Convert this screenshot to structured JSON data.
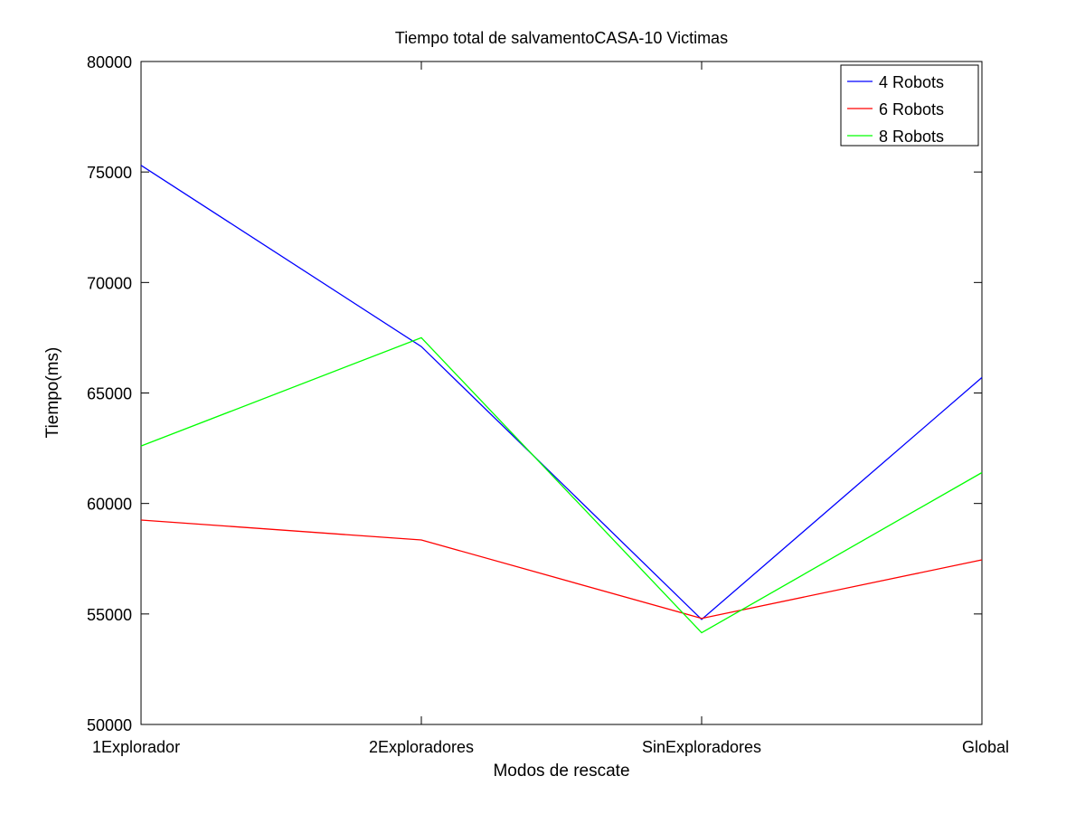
{
  "chart_data": {
    "type": "line",
    "title": "Tiempo total de salvamentoCASA-10 Victimas",
    "xlabel": "Modos de rescate",
    "ylabel": "Tiempo(ms)",
    "categories": [
      "1Explorador",
      "2Exploradores",
      "SinExploradores",
      "Global"
    ],
    "ylim": [
      50000,
      80000
    ],
    "yticks": [
      50000,
      55000,
      60000,
      65000,
      70000,
      75000,
      80000
    ],
    "grid": false,
    "legend_position": "top-right",
    "series": [
      {
        "name": "4 Robots",
        "color": "#0000ff",
        "values": [
          75300,
          67100,
          54750,
          65700
        ]
      },
      {
        "name": "6 Robots",
        "color": "#ff0000",
        "values": [
          59250,
          58350,
          54800,
          57450
        ]
      },
      {
        "name": "8 Robots",
        "color": "#00ff00",
        "values": [
          62600,
          67500,
          54150,
          61400
        ]
      }
    ]
  }
}
